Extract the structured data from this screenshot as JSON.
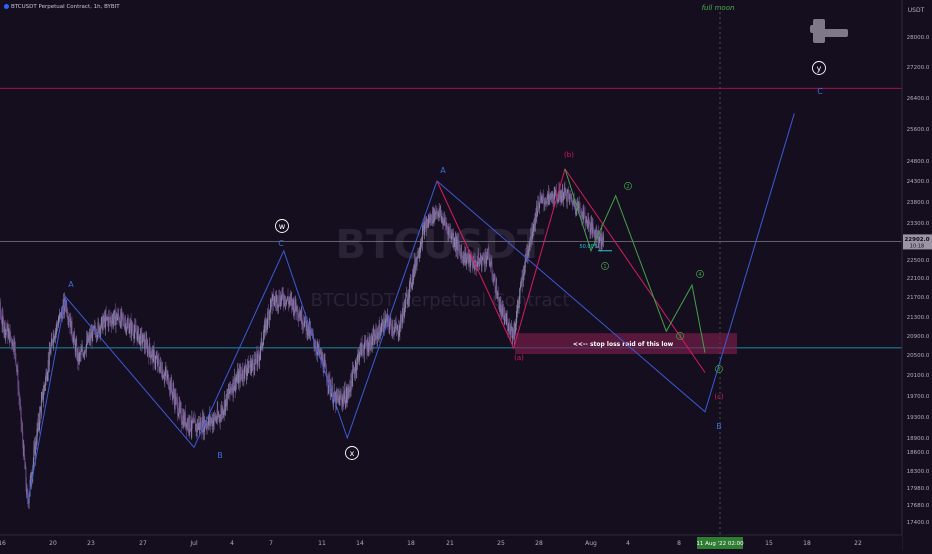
{
  "header": {
    "symbol_line": "BTCUSDT Perpetual Contract, 1h, BYBIT",
    "watermark_symbol": "BTCUSDT",
    "watermark_name": "BTCUSDT Perpetual Contract"
  },
  "chart_data": {
    "type": "candlestick",
    "currency": "USDT",
    "y_axis": {
      "label": "USDT",
      "ylim": [
        17300,
        28600
      ],
      "ticks": [
        28000,
        27200,
        26400,
        25600,
        24800,
        24300,
        23800,
        23300,
        22500,
        22100,
        21700,
        21300,
        20900,
        20500,
        20100,
        19700,
        19300,
        18900,
        18600,
        18300,
        17980,
        17680,
        17400
      ]
    },
    "x_axis": {
      "ticks": [
        "16",
        "20",
        "23",
        "27",
        "Jul",
        "4",
        "7",
        "11",
        "14",
        "18",
        "21",
        "25",
        "28",
        "Aug",
        "4",
        "8",
        "11",
        "15",
        "18",
        "22"
      ],
      "highlight_label": "11 Aug '22  02:00"
    },
    "price_tag": {
      "value": "22902.0",
      "countdown": "10:18"
    },
    "horizontal_lines": [
      {
        "price": 26650,
        "color": "#c2185b"
      },
      {
        "price": 22902,
        "color": "#8a8494"
      },
      {
        "price": 20650,
        "color": "#26c6da"
      }
    ],
    "zone": {
      "label": "<<-- stop loss raid of this low",
      "price_top": 20960,
      "price_bottom": 20520
    },
    "fib_label": "50.00%",
    "event_label": "full moon",
    "wave_labels": {
      "blue": [
        "A",
        "B",
        "C",
        "A",
        "B",
        "C"
      ],
      "black_circled": [
        "w",
        "x",
        "y"
      ],
      "red": [
        "(b)",
        "(a)",
        "(c)"
      ],
      "green": [
        "1",
        "2",
        "3",
        "4",
        "5"
      ]
    },
    "paths": {
      "blue_wave": [
        [
          "Jun 18",
          17700
        ],
        [
          "Jun 21",
          21700
        ],
        [
          "Jul 1",
          18700
        ],
        [
          "Jul 8",
          22700
        ],
        [
          "Jul 13",
          18900
        ],
        [
          "Jul 20",
          24300
        ],
        [
          "Aug 10",
          19400
        ],
        [
          "Aug 17",
          26000
        ]
      ],
      "red_wave": [
        [
          "Jul 20",
          24300
        ],
        [
          "Jul 26",
          20650
        ],
        [
          "Jul 30",
          24600
        ],
        [
          "Aug 10",
          20150
        ]
      ],
      "green_wave": [
        [
          "Jul 30",
          24600
        ],
        [
          "Aug 1",
          22700
        ],
        [
          "Aug 3",
          23950
        ],
        [
          "Aug 7",
          21000
        ],
        [
          "Aug 9",
          21950
        ],
        [
          "Aug 10",
          20550
        ]
      ]
    },
    "series_price": [
      [
        "Jun 15",
        22700
      ],
      [
        "Jun 16",
        21200
      ],
      [
        "Jun 17",
        20700
      ],
      [
        "Jun 18",
        17700
      ],
      [
        "Jun 19",
        19400
      ],
      [
        "Jun 20",
        20900
      ],
      [
        "Jun 21",
        21600
      ],
      [
        "Jun 22",
        20400
      ],
      [
        "Jun 23",
        20900
      ],
      [
        "Jun 24",
        21200
      ],
      [
        "Jun 25",
        21300
      ],
      [
        "Jun 26",
        21100
      ],
      [
        "Jun 27",
        20800
      ],
      [
        "Jun 28",
        20400
      ],
      [
        "Jun 29",
        20000
      ],
      [
        "Jun 30",
        19300
      ],
      [
        "Jul 1",
        19100
      ],
      [
        "Jul 2",
        19200
      ],
      [
        "Jul 3",
        19300
      ],
      [
        "Jul 4",
        19900
      ],
      [
        "Jul 5",
        20200
      ],
      [
        "Jul 6",
        20400
      ],
      [
        "Jul 7",
        21600
      ],
      [
        "Jul 8",
        21700
      ],
      [
        "Jul 9",
        21500
      ],
      [
        "Jul 10",
        21000
      ],
      [
        "Jul 11",
        20400
      ],
      [
        "Jul 12",
        19600
      ],
      [
        "Jul 13",
        19700
      ],
      [
        "Jul 14",
        20600
      ],
      [
        "Jul 15",
        20800
      ],
      [
        "Jul 16",
        21200
      ],
      [
        "Jul 17",
        21000
      ],
      [
        "Jul 18",
        22000
      ],
      [
        "Jul 19",
        23200
      ],
      [
        "Jul 20",
        23600
      ],
      [
        "Jul 21",
        23100
      ],
      [
        "Jul 22",
        22600
      ],
      [
        "Jul 23",
        22400
      ],
      [
        "Jul 24",
        22600
      ],
      [
        "Jul 25",
        21400
      ],
      [
        "Jul 26",
        20950
      ],
      [
        "Jul 27",
        22600
      ],
      [
        "Jul 28",
        23800
      ],
      [
        "Jul 29",
        23900
      ],
      [
        "Jul 30",
        24000
      ],
      [
        "Jul 31",
        23700
      ],
      [
        "Aug 1",
        23200
      ],
      [
        "Aug 2",
        22900
      ]
    ]
  }
}
